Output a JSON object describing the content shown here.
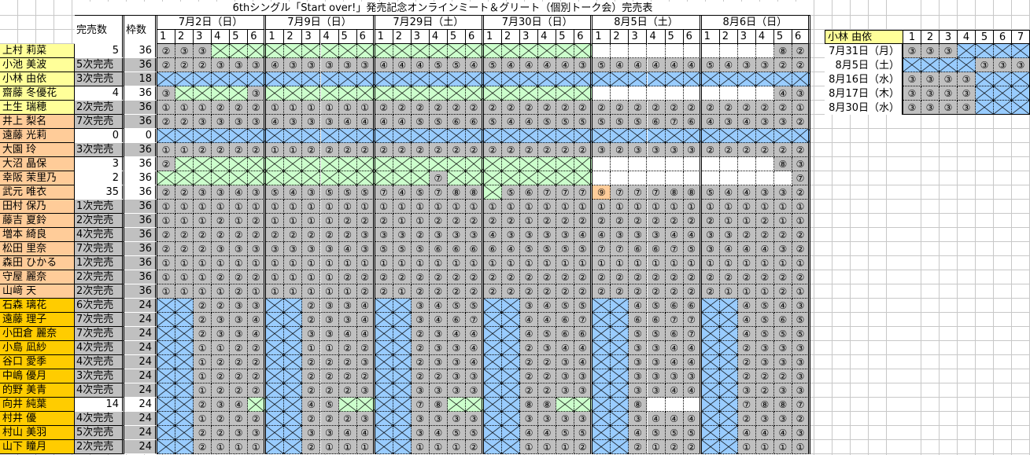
{
  "title": "6thシングル「Start over!」発売記念オンラインミート＆グリート（個別トーク会）完売表",
  "headers": {
    "sold": "完売数",
    "slots": "枠数"
  },
  "dates": [
    "7月2日（日）",
    "7月9日（日）",
    "7月29日（土）",
    "7月30日（日）",
    "8月5日（土）",
    "8月6日（日）"
  ],
  "parts": [
    "1",
    "2",
    "3",
    "4",
    "5",
    "6"
  ],
  "colors": {
    "yellow": "#ffff99",
    "peach": "#ffcc99",
    "gold": "#ffcc00",
    "gray": "#c0c0c0",
    "green_soldout": "#ccffcc",
    "blue_absent": "#99ccff",
    "orange_highlight": "#ffcc99"
  },
  "legend_tokens": {
    "digit": "circled number on gray",
    "g": "green crossed (sold out)",
    "b": "blue crossed (not held)",
    "w": "blank",
    "o": "circled number on orange"
  },
  "members": [
    {
      "name": "上村 莉菜",
      "group": "yellow",
      "sold": "5",
      "slots": "36",
      "cells": "2 3 3 g g g|g g g g g g|g g g g g g|g g g g g g|w w w w w w|w w w w 8 2"
    },
    {
      "name": "小池 美波",
      "group": "yellow",
      "sold": "5次完売",
      "slots": "36",
      "cells": "2 2 2 3 3 3|4 3 3 3 3 3|4 4 4 5 5 4|5 4 4 4 4 3|5 4 4 4 4 4|5 4 3 3 2 2"
    },
    {
      "name": "小林 由依",
      "group": "yellow",
      "sold": "3次完売",
      "slots": "18",
      "cells": "b b b b b b|b b b b b b|b b b b b b|b b b b b b|b b b b b b|b b b b b b"
    },
    {
      "name": "齋藤 冬優花",
      "group": "yellow",
      "sold": "4",
      "slots": "36",
      "cells": "3 g g g g 3|g g g g g g|g g g g g g|g g g g g g|w w w w w w|w w w w 4 3"
    },
    {
      "name": "土生 瑞穂",
      "group": "yellow",
      "sold": "2次完売",
      "slots": "36",
      "cells": "1 1 1 2 2 2|1 1 1 1 1 1|2 2 2 2 2 2|2 2 2 2 2 2|2 2 2 2 2 2|2 2 2 2 2 1"
    },
    {
      "name": "井上 梨名",
      "group": "peach",
      "sold": "7次完売",
      "slots": "36",
      "cells": "2 2 3 3 3 3|4 3 3 3 4 4|4 4 5 5 6 6|5 4 4 5 5 5|5 5 5 6 7 6|4 3 4 3 3 2"
    },
    {
      "name": "遠藤 光莉",
      "group": "peach",
      "sold": "0",
      "slots": "0",
      "cells": "b b b b b b|b b b b b b|b b b b b b|b b b b b b|b b b b b b|b b b b b b"
    },
    {
      "name": "大園 玲",
      "group": "peach",
      "sold": "3次完売",
      "slots": "36",
      "cells": "1 1 2 2 2 2|1 1 2 2 2 2|2 2 2 2 2 2|2 2 2 2 2 2|3 2 3 3 3 3|2 2 2 2 2 2"
    },
    {
      "name": "大沼 晶保",
      "group": "peach",
      "sold": "3",
      "slots": "36",
      "cells": "2 g g g g g|g g g g g g|g g g g g g|g g g g g g|w w w w w w|w w w w 8 3"
    },
    {
      "name": "幸阪 茉里乃",
      "group": "peach",
      "sold": "2",
      "slots": "36",
      "cells": "g g g g g g|g g g g g g|g g g 7 g g|g g g g g g|w w w w w w|w w w w w 7"
    },
    {
      "name": "武元 唯衣",
      "group": "peach",
      "sold": "35",
      "slots": "36",
      "cells": "2 2 3 3 4 3|5 4 3 5 5 5|7 4 5 7 8 8|g 5 6 7 7 7|o9 7 7 7 8 8|5 4 4 3 3 2"
    },
    {
      "name": "田村 保乃",
      "group": "peach",
      "sold": "1次完売",
      "slots": "36",
      "cells": "1 1 1 1 1 1|1 1 1 1 1 1|1 1 1 1 1 1|1 1 1 1 1 1|1 1 1 1 1 1|1 1 1 1 1 1"
    },
    {
      "name": "藤吉 夏鈴",
      "group": "peach",
      "sold": "2次完売",
      "slots": "36",
      "cells": "1 1 1 2 1 2|1 1 1 1 2 2|2 1 1 2 2 2|2 2 1 2 2 2|2 2 2 2 2 2|2 1 1 2 1 1"
    },
    {
      "name": "増本 綺良",
      "group": "peach",
      "sold": "4次完売",
      "slots": "36",
      "cells": "2 2 2 2 2 2|2 2 2 2 2 3|3 3 2 3 3 3|4 3 3 3 3 4|4 3 3 3 4 4|3 3 2 2 2 2"
    },
    {
      "name": "松田 里奈",
      "group": "peach",
      "sold": "7次完売",
      "slots": "36",
      "cells": "2 2 2 3 3 3|3 3 3 3 4 3|5 5 5 6 6 6|6 4 5 5 5 5|7 7 6 6 7 5|3 4 4 4 3 2"
    },
    {
      "name": "森田 ひかる",
      "group": "peach",
      "sold": "1次完売",
      "slots": "36",
      "cells": "1 1 1 1 1 1|1 1 1 1 1 1|1 1 1 1 1 1|1 1 1 1 1 1|1 1 1 1 1 1|1 1 1 1 1 1"
    },
    {
      "name": "守屋 麗奈",
      "group": "peach",
      "sold": "2次完売",
      "slots": "36",
      "cells": "1 1 1 2 2 2|1 1 1 1 2 2|2 2 2 2 2 2|2 2 2 2 2 2|2 2 2 2 2 2|2 2 2 2 2 2"
    },
    {
      "name": "山﨑 天",
      "group": "peach",
      "sold": "2次完売",
      "slots": "36",
      "cells": "1 1 1 1 2 1|1 1 1 1 1 2|2 1 2 2 2 2|2 2 2 2 2 2|2 2 2 2 2 2|2 1 1 1 2 1"
    },
    {
      "name": "石森 璃花",
      "group": "gold",
      "sold": "6次完売",
      "slots": "24",
      "cells": "b b 2 2 3 3|b b 2 3 3 4|b b 3 4 5 5|b b 3 4 5 5|b b 4 5 6 6|b b 4 5 4 3"
    },
    {
      "name": "遠藤 理子",
      "group": "gold",
      "sold": "7次完売",
      "slots": "24",
      "cells": "b b 2 3 3 4|b b 2 3 3 4|b b 3 4 6 7|b b 4 4 6 7|b b 6 6 7 7|b b 4 5 6 5"
    },
    {
      "name": "小田倉 麗奈",
      "group": "gold",
      "sold": "7次完売",
      "slots": "24",
      "cells": "b b 2 3 3 4|b b 3 3 4 4|b b 2 3 4 4|b b 4 5 6 6|b b 5 5 6 7|b b 4 5 5 5"
    },
    {
      "name": "小島 凪紗",
      "group": "gold",
      "sold": "4次完売",
      "slots": "24",
      "cells": "b b 1 1 2 2|b b 1 1 2 2|b b 2 3 3 4|b b 2 3 4 4|b b 3 3 4 4|b b 2 3 3 3"
    },
    {
      "name": "谷口 愛季",
      "group": "gold",
      "sold": "4次完売",
      "slots": "24",
      "cells": "b b 1 2 2 2|b b 2 2 2 3|b b 2 3 3 4|b b 2 2 3 4|b b 3 3 4 4|b b 2 3 3 3"
    },
    {
      "name": "中嶋 優月",
      "group": "gold",
      "sold": "3次完売",
      "slots": "24",
      "cells": "b b 1 2 2 2|b b 2 2 2 2|b b 2 2 3 3|b b 2 2 3 3|b b 3 3 3 3|b b 2 2 2 3"
    },
    {
      "name": "的野 美青",
      "group": "gold",
      "sold": "4次完売",
      "slots": "24",
      "cells": "b b 1 2 2 2|b b 2 2 2 3|b b 3 3 3 3|b b 2 2 3 3|b b 3 3 4 4|b b 3 2 3 3"
    },
    {
      "name": "向井 純葉",
      "group": "gold",
      "sold": "14",
      "slots": "24",
      "cells": "b b 2 3 4 g|b b 4 5 g g|b b 7 8 g g|b b 8 8 g g|b b 8 w w w|b b 7 8 8 7"
    },
    {
      "name": "村井 優",
      "group": "gold",
      "sold": "4次完売",
      "slots": "24",
      "cells": "b b 1 2 2 2|b b 2 2 2 3|b b 3 3 3 3|b b 3 3 3 3|b b 3 4 4 4|b b 2 3 3 2"
    },
    {
      "name": "村山 美羽",
      "group": "gold",
      "sold": "5次完売",
      "slots": "24",
      "cells": "b b 2 2 3 3|b b 3 3 4 4|b b 3 4 5 5|b b 4 4 5 5|b b 4 5 5 5|b b 4 4 4 3"
    },
    {
      "name": "山下 瞳月",
      "group": "gold",
      "sold": "2次完売",
      "slots": "24",
      "cells": "b b 2 1 1 1|b b 2 1 1 1|b b 1 1 1 2|b b 1 1 1 2|b b 2 1 2 2|b b 1 1 1 1"
    }
  ],
  "side_panel": {
    "member": "小林 由依",
    "parts": [
      "1",
      "2",
      "3",
      "4",
      "5",
      "6",
      "7"
    ],
    "rows": [
      {
        "date": "7月31日（月）",
        "cells": "3 3 3 b b b b"
      },
      {
        "date": "8月5日（土）",
        "cells": "b b b b 3 3 3"
      },
      {
        "date": "8月16日（水）",
        "cells": "3 3 3 3 b b b"
      },
      {
        "date": "8月17日（木）",
        "cells": "3 3 3 3 b b b"
      },
      {
        "date": "8月30日（水）",
        "cells": "3 3 3 3 b b b"
      }
    ]
  }
}
